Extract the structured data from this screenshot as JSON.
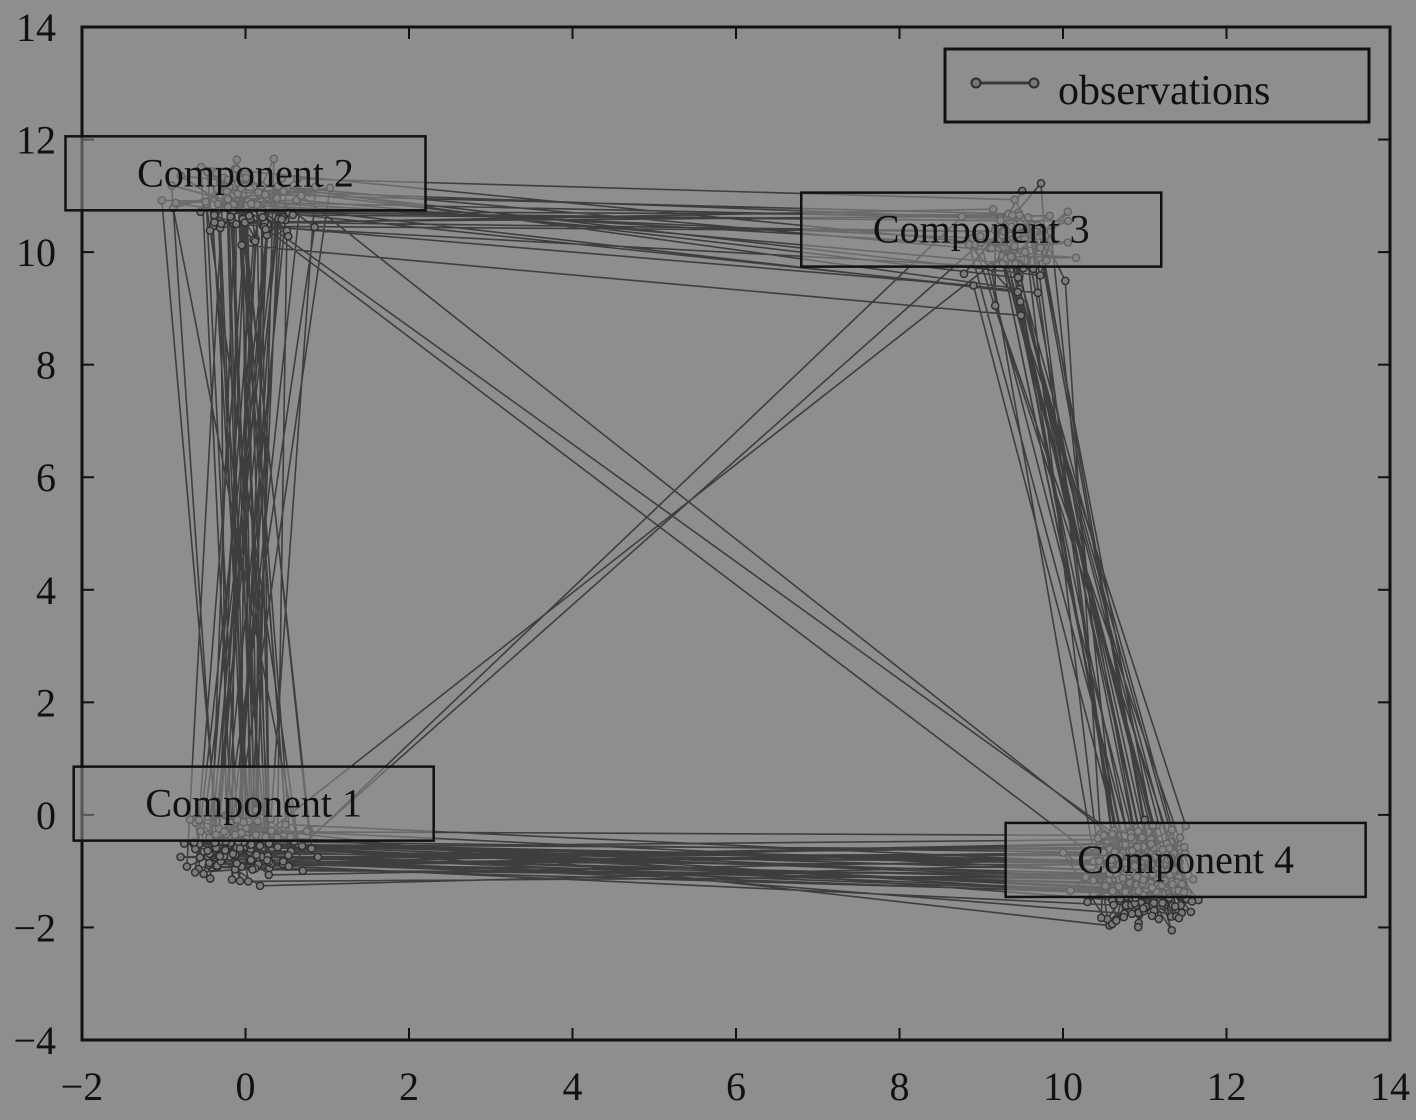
{
  "chart_data": {
    "type": "line",
    "xlim": [
      -2,
      14
    ],
    "ylim": [
      -4,
      14
    ],
    "x_ticks": [
      -2,
      0,
      2,
      4,
      6,
      8,
      10,
      12,
      14
    ],
    "y_ticks": [
      -4,
      -2,
      0,
      2,
      4,
      6,
      8,
      10,
      12,
      14
    ],
    "x_tick_labels": [
      "−2",
      "0",
      "2",
      "4",
      "6",
      "8",
      "10",
      "12",
      "14"
    ],
    "y_tick_labels": [
      "−4",
      "−2",
      "0",
      "2",
      "4",
      "6",
      "8",
      "10",
      "12",
      "14"
    ],
    "grid": false,
    "legend": {
      "position": "top-right",
      "entries": [
        "observations"
      ]
    },
    "series": [
      {
        "name": "observations",
        "marker": "circle"
      }
    ],
    "clusters": [
      {
        "label": "Component 1",
        "center": [
          0.0,
          -0.6
        ],
        "spread": [
          0.55,
          0.4
        ]
      },
      {
        "label": "Component 2",
        "center": [
          0.0,
          10.9
        ],
        "spread": [
          0.6,
          0.55
        ]
      },
      {
        "label": "Component 3",
        "center": [
          9.4,
          10.1
        ],
        "spread": [
          0.45,
          0.7
        ]
      },
      {
        "label": "Component 4",
        "center": [
          11.0,
          -1.1
        ],
        "spread": [
          0.45,
          0.6
        ]
      }
    ],
    "annotations": [
      {
        "text": "Component 1",
        "x": 0.1,
        "y": 0.2
      },
      {
        "text": "Component 2",
        "x": 0.0,
        "y": 11.4
      },
      {
        "text": "Component 3",
        "x": 9.0,
        "y": 10.4
      },
      {
        "text": "Component 4",
        "x": 11.5,
        "y": -0.8
      }
    ],
    "num_points": 560,
    "colors": {
      "line": "#3a3a3a",
      "marker": "#2e2e2e",
      "background": "#8e8e8e",
      "axes": "#111111"
    }
  }
}
